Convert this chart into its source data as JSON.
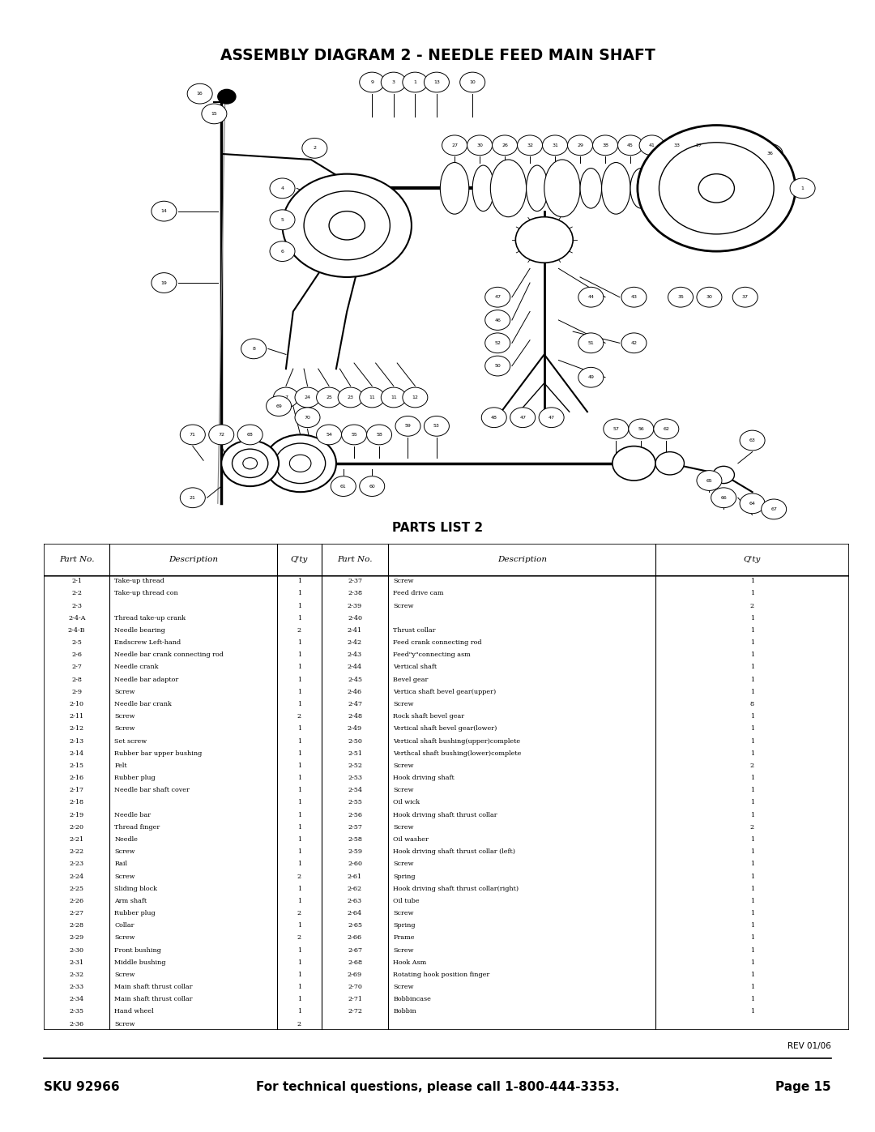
{
  "title": "ASSEMBLY DIAGRAM 2 - NEEDLE FEED MAIN SHAFT",
  "parts_list_title": "PARTS LIST 2",
  "background_color": "#ffffff",
  "left_parts": [
    [
      "2-1",
      "Take-up thread",
      "1"
    ],
    [
      "2-2",
      "Take-up thread con",
      "1"
    ],
    [
      "2-3",
      "",
      "1"
    ],
    [
      "2-4-A",
      "Thread take-up crank",
      "1"
    ],
    [
      "2-4-B",
      "Needle bearing",
      "2"
    ],
    [
      "2-5",
      "Endscrew Left-hand",
      "1"
    ],
    [
      "2-6",
      "Needle bar crank connecting rod",
      "1"
    ],
    [
      "2-7",
      "Needle crank",
      "1"
    ],
    [
      "2-8",
      "Needle bar adaptor",
      "1"
    ],
    [
      "2-9",
      "Screw",
      "1"
    ],
    [
      "2-10",
      "Needle bar crank",
      "1"
    ],
    [
      "2-11",
      "Screw",
      "2"
    ],
    [
      "2-12",
      "Screw",
      "1"
    ],
    [
      "2-13",
      "Set screw",
      "1"
    ],
    [
      "2-14",
      "Rubber bar upper bushing",
      "1"
    ],
    [
      "2-15",
      "Felt",
      "1"
    ],
    [
      "2-16",
      "Rubber plug",
      "1"
    ],
    [
      "2-17",
      "Needle bar shaft cover",
      "1"
    ],
    [
      "2-18",
      "",
      "1"
    ],
    [
      "2-19",
      "Needle bar",
      "1"
    ],
    [
      "2-20",
      "Thread finger",
      "1"
    ],
    [
      "2-21",
      "Needle",
      "1"
    ],
    [
      "2-22",
      "Screw",
      "1"
    ],
    [
      "2-23",
      "Rail",
      "1"
    ],
    [
      "2-24",
      "Screw",
      "2"
    ],
    [
      "2-25",
      "Sliding block",
      "1"
    ],
    [
      "2-26",
      "Arm shaft",
      "1"
    ],
    [
      "2-27",
      "Rubber plug",
      "2"
    ],
    [
      "2-28",
      "Collar",
      "1"
    ],
    [
      "2-29",
      "Screw",
      "2"
    ],
    [
      "2-30",
      "Front bushing",
      "1"
    ],
    [
      "2-31",
      "Middle bushing",
      "1"
    ],
    [
      "2-32",
      "Screw",
      "1"
    ],
    [
      "2-33",
      "Main shaft thrust collar",
      "1"
    ],
    [
      "2-34",
      "Main shaft thrust collar",
      "1"
    ],
    [
      "2-35",
      "Hand wheel",
      "1"
    ],
    [
      "2-36",
      "Screw",
      "2"
    ]
  ],
  "right_parts": [
    [
      "2-37",
      "Screw",
      "1"
    ],
    [
      "2-38",
      "Feed drive cam",
      "1"
    ],
    [
      "2-39",
      "Screw",
      "2"
    ],
    [
      "2-40",
      "",
      "1"
    ],
    [
      "2-41",
      "Thrust collar",
      "1"
    ],
    [
      "2-42",
      "Feed crank connecting rod",
      "1"
    ],
    [
      "2-43",
      "Feed\"y\"connecting asm",
      "1"
    ],
    [
      "2-44",
      "Vertical shaft",
      "1"
    ],
    [
      "2-45",
      "Bevel gear",
      "1"
    ],
    [
      "2-46",
      "Vertica shaft bevel gear(upper)",
      "1"
    ],
    [
      "2-47",
      "Screw",
      "8"
    ],
    [
      "2-48",
      "Rock shaft bevel gear",
      "1"
    ],
    [
      "2-49",
      "Vertical shaft bevel gear(lower)",
      "1"
    ],
    [
      "2-50",
      "Vertical shaft bushing(upper)complete",
      "1"
    ],
    [
      "2-51",
      "Verthcal shaft bushing(lower)complete",
      "1"
    ],
    [
      "2-52",
      "Screw",
      "2"
    ],
    [
      "2-53",
      "Hook driving shaft",
      "1"
    ],
    [
      "2-54",
      "Screw",
      "1"
    ],
    [
      "2-55",
      "Oil wick",
      "1"
    ],
    [
      "2-56",
      "Hook driving shaft thrust collar",
      "1"
    ],
    [
      "2-57",
      "Screw",
      "2"
    ],
    [
      "2-58",
      "Oil washer",
      "1"
    ],
    [
      "2-59",
      "Hook driving shaft thrust collar (left)",
      "1"
    ],
    [
      "2-60",
      "Screw",
      "1"
    ],
    [
      "2-61",
      "Spring",
      "1"
    ],
    [
      "2-62",
      "Hook driving shaft thrust collar(right)",
      "1"
    ],
    [
      "2-63",
      "Oil tube",
      "1"
    ],
    [
      "2-64",
      "Screw",
      "1"
    ],
    [
      "2-65",
      "Spring",
      "1"
    ],
    [
      "2-66",
      "Frame",
      "1"
    ],
    [
      "2-67",
      "Screw",
      "1"
    ],
    [
      "2-68",
      "Hook Asm",
      "1"
    ],
    [
      "2-69",
      "Rotating hook position finger",
      "1"
    ],
    [
      "2-70",
      "Screw",
      "1"
    ],
    [
      "2-71",
      "Bobbincase",
      "1"
    ],
    [
      "2-72",
      "Bobbin",
      "1"
    ]
  ],
  "footer_left": "SKU 92966",
  "footer_center": "For technical questions, please call 1-800-444-3353.",
  "footer_right": "Page 15",
  "rev": "REV 01/06"
}
